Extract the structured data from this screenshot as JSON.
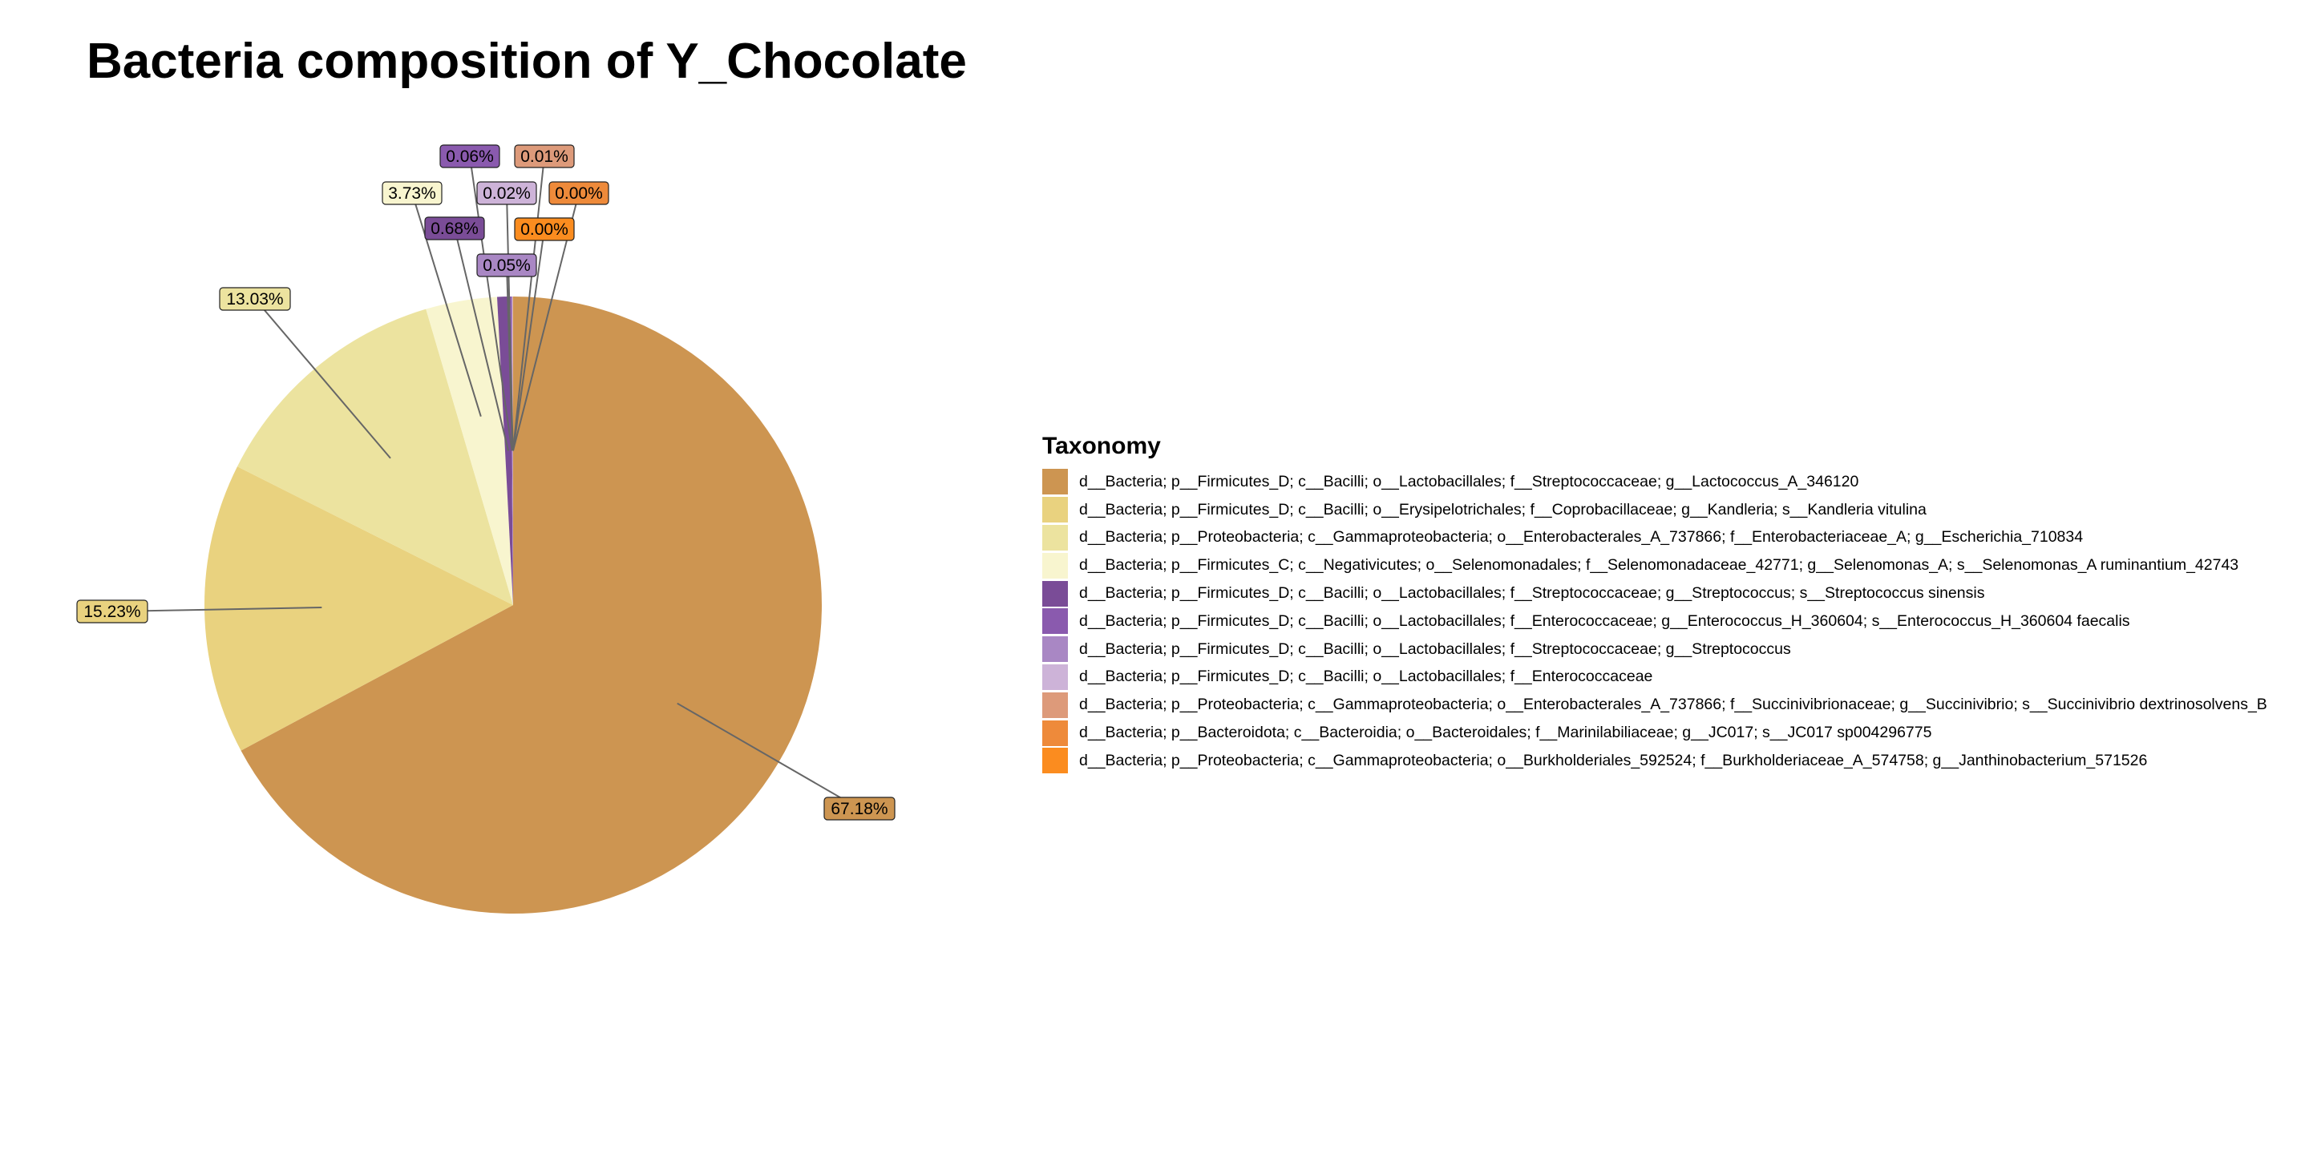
{
  "chart_data": {
    "type": "pie",
    "title": "Bacteria composition of Y_Chocolate",
    "legend_title": "Taxonomy",
    "legend_position": "right",
    "slices": [
      {
        "label": "d__Bacteria; p__Firmicutes_D; c__Bacilli; o__Lactobacillales; f__Streptococcaceae; g__Lactococcus_A_346120",
        "value": 67.18,
        "display": "67.18%",
        "color": "#CD9551"
      },
      {
        "label": "d__Bacteria; p__Firmicutes_D; c__Bacilli; o__Erysipelotrichales; f__Coprobacillaceae; g__Kandleria; s__Kandleria vitulina",
        "value": 15.23,
        "display": "15.23%",
        "color": "#E9D27F"
      },
      {
        "label": "d__Bacteria; p__Proteobacteria; c__Gammaproteobacteria; o__Enterobacterales_A_737866; f__Enterobacteriaceae_A; g__Escherichia_710834",
        "value": 13.03,
        "display": "13.03%",
        "color": "#ECE39F"
      },
      {
        "label": "d__Bacteria; p__Firmicutes_C; c__Negativicutes; o__Selenomonadales; f__Selenomonadaceae_42771; g__Selenomonas_A; s__Selenomonas_A ruminantium_42743",
        "value": 3.73,
        "display": "3.73%",
        "color": "#F8F5CF"
      },
      {
        "label": "d__Bacteria; p__Firmicutes_D; c__Bacilli; o__Lactobacillales; f__Streptococcaceae; g__Streptococcus; s__Streptococcus sinensis",
        "value": 0.68,
        "display": "0.68%",
        "color": "#7A4C97"
      },
      {
        "label": "d__Bacteria; p__Firmicutes_D; c__Bacilli; o__Lactobacillales; f__Enterococcaceae; g__Enterococcus_H_360604; s__Enterococcus_H_360604 faecalis",
        "value": 0.06,
        "display": "0.06%",
        "color": "#8A5AAE"
      },
      {
        "label": "d__Bacteria; p__Firmicutes_D; c__Bacilli; o__Lactobacillales; f__Streptococcaceae; g__Streptococcus",
        "value": 0.05,
        "display": "0.05%",
        "color": "#A987C4"
      },
      {
        "label": "d__Bacteria; p__Firmicutes_D; c__Bacilli; o__Lactobacillales; f__Enterococcaceae",
        "value": 0.02,
        "display": "0.02%",
        "color": "#CDB3D8"
      },
      {
        "label": "d__Bacteria; p__Proteobacteria; c__Gammaproteobacteria; o__Enterobacterales_A_737866; f__Succinivibrionaceae; g__Succinivibrio; s__Succinivibrio dextrinosolvens_B",
        "value": 0.01,
        "display": "0.01%",
        "color": "#DD9A7A"
      },
      {
        "label": "d__Bacteria; p__Bacteroidota; c__Bacteroidia; o__Bacteroidales; f__Marinilabiliaceae; g__JC017; s__JC017 sp004296775",
        "value": 0.004,
        "display": "0.00%",
        "color": "#EE8A3A"
      },
      {
        "label": "d__Bacteria; p__Proteobacteria; c__Gammaproteobacteria; o__Burkholderiales_592524; f__Burkholderiaceae_A_574758; g__Janthinobacterium_571526",
        "value": 0.003,
        "display": "0.00%",
        "color": "#FB8C1F"
      }
    ]
  }
}
